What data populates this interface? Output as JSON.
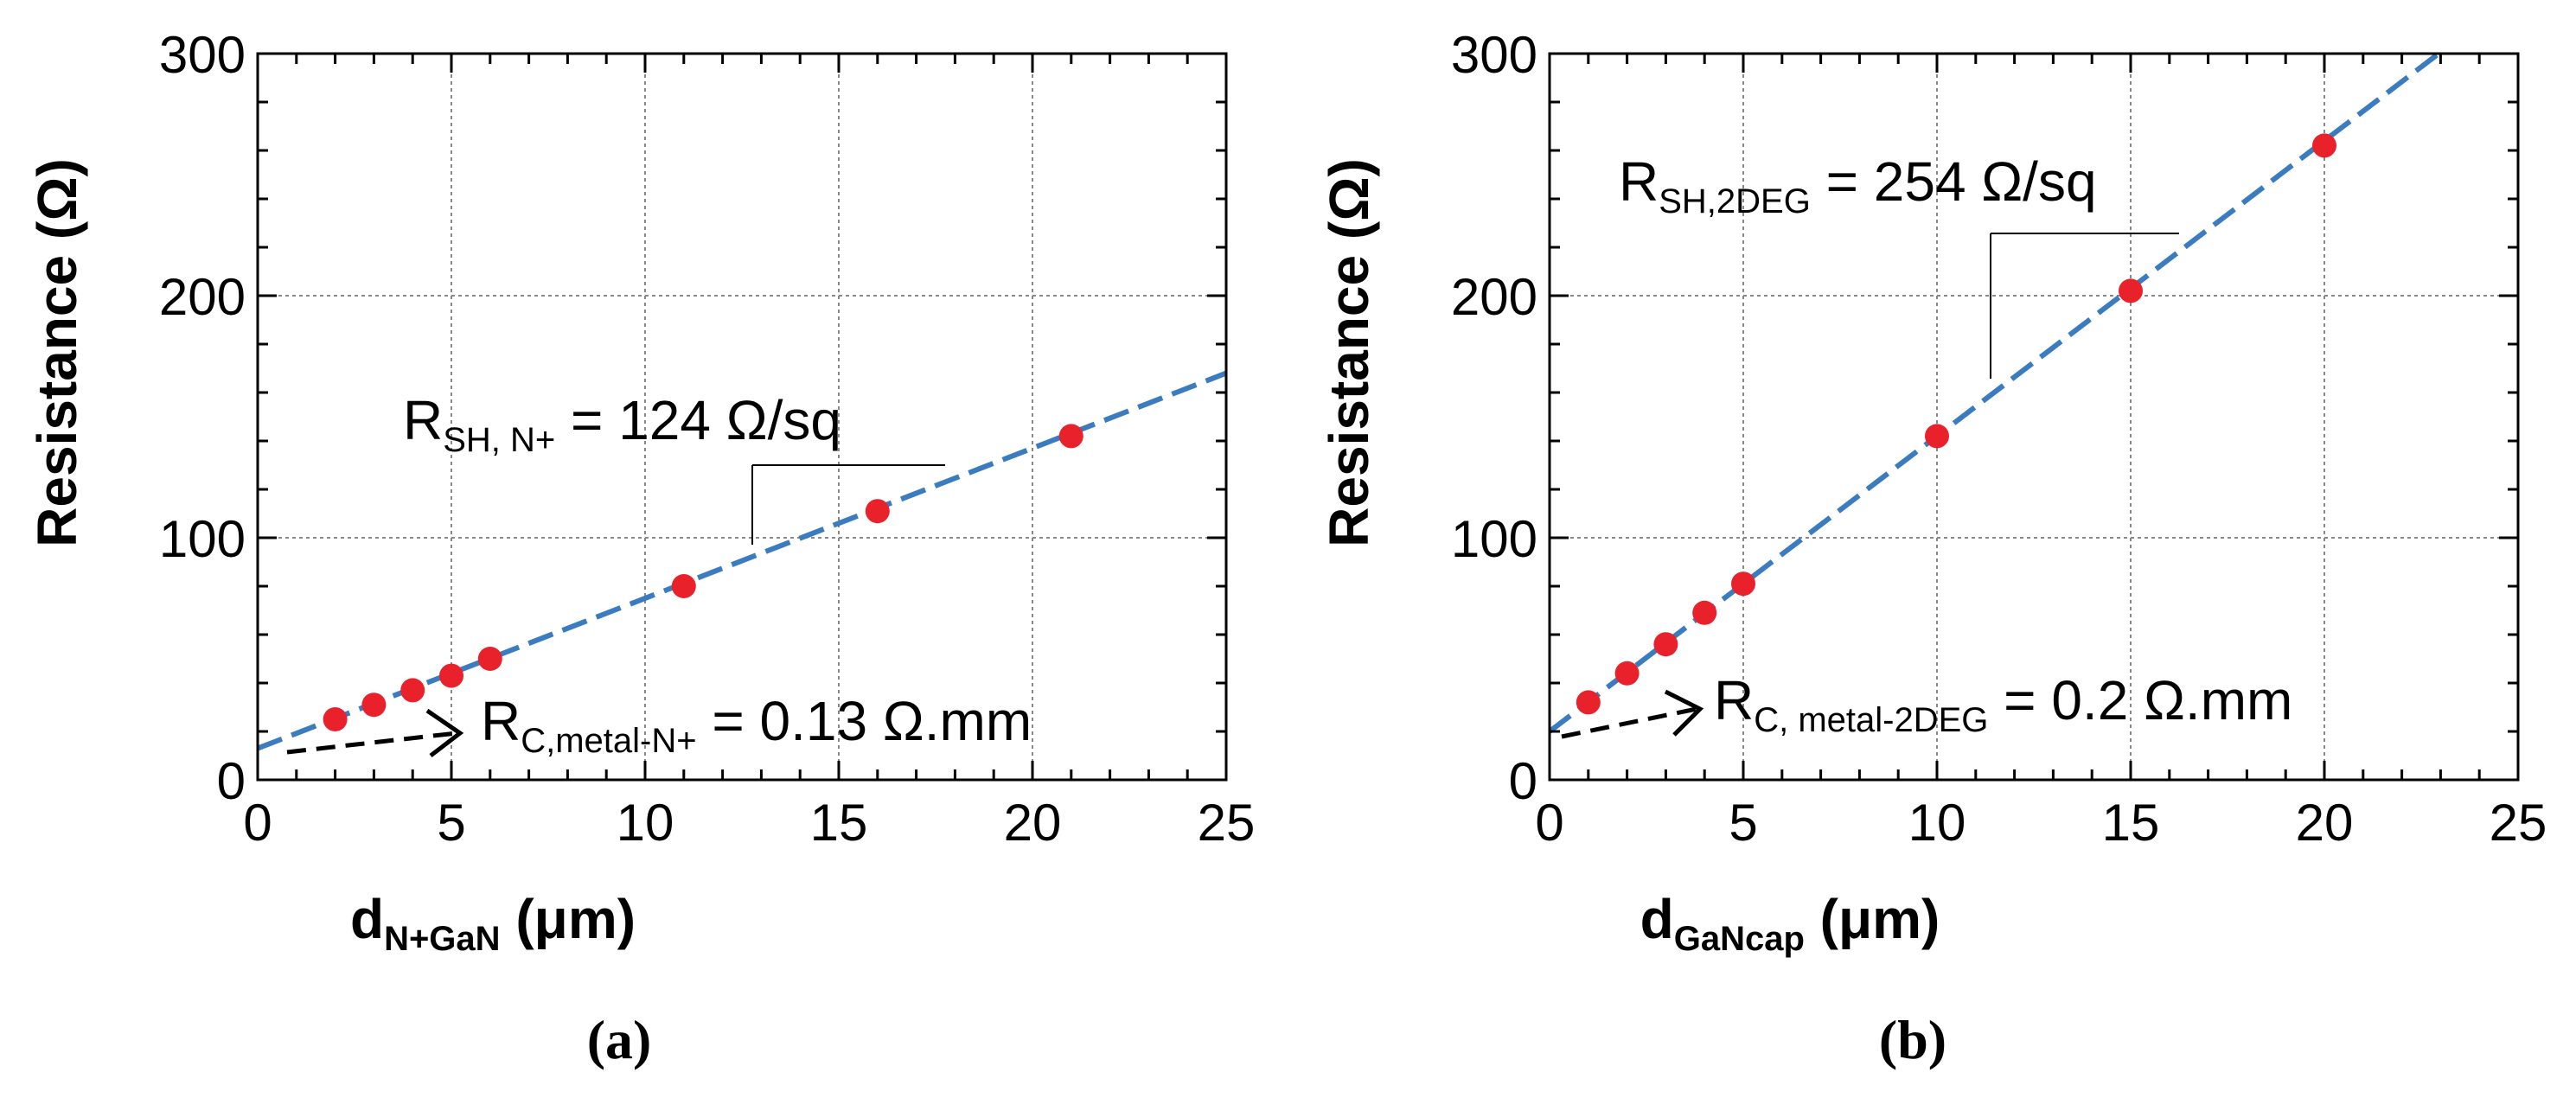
{
  "chart_data": [
    {
      "type": "scatter",
      "panel_label": "(a)",
      "x": [
        2,
        3,
        4,
        5,
        6,
        11,
        16,
        21
      ],
      "y": [
        25,
        31,
        37,
        43,
        50,
        80,
        111,
        142
      ],
      "fit": {
        "slope": 6.2,
        "intercept": 13
      },
      "xlim": [
        0,
        25
      ],
      "ylim": [
        0,
        300
      ],
      "xticks": [
        "0",
        "5",
        "10",
        "15",
        "20",
        "25"
      ],
      "yticks": [
        "0",
        "100",
        "200",
        "300"
      ],
      "xlabel_main": "d",
      "xlabel_sub": "N+GaN",
      "xlabel_unit": " (μm)",
      "ylabel": "Resistance (Ω)",
      "sheet_label": "R",
      "sheet_sub": "SH, N+",
      "sheet_value": " = 124 Ω/sq",
      "contact_label": "R",
      "contact_sub": "C,metal-N+",
      "contact_value": " = 0.13 Ω.mm",
      "grid": true
    },
    {
      "type": "scatter",
      "panel_label": "(b)",
      "x": [
        1,
        2,
        3,
        4,
        5,
        10,
        15,
        20
      ],
      "y": [
        32,
        44,
        56,
        69,
        81,
        142,
        202,
        262
      ],
      "fit": {
        "slope": 12.2,
        "intercept": 20
      },
      "xlim": [
        0,
        25
      ],
      "ylim": [
        0,
        300
      ],
      "xticks": [
        "0",
        "5",
        "10",
        "15",
        "20",
        "25"
      ],
      "yticks": [
        "0",
        "100",
        "200",
        "300"
      ],
      "xlabel_main": "d",
      "xlabel_sub": "GaNcap",
      "xlabel_unit": " (μm)",
      "ylabel": "Resistance (Ω)",
      "sheet_label": "R",
      "sheet_sub": "SH,2DEG",
      "sheet_value": " = 254 Ω/sq",
      "contact_label": "R",
      "contact_sub": "C, metal-2DEG",
      "contact_value": " = 0.2 Ω.mm",
      "grid": true
    }
  ],
  "colors": {
    "point": "#e8212b",
    "fit": "#3b7bbf",
    "grid": "#888888",
    "axis": "#000000"
  }
}
